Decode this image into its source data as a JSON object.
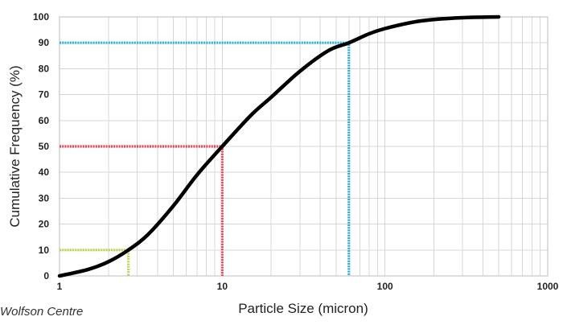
{
  "chart_data": {
    "type": "line",
    "title": "",
    "xlabel": "Particle Size (micron)",
    "ylabel": "Cumulative Frequency (%)",
    "x_scale": "log",
    "xlim": [
      1,
      1000
    ],
    "ylim": [
      0,
      100
    ],
    "x_ticks": [
      1,
      10,
      100,
      1000
    ],
    "x_tick_labels": [
      "1",
      "10",
      "100",
      "1000"
    ],
    "y_ticks": [
      0,
      10,
      20,
      30,
      40,
      50,
      60,
      70,
      80,
      90,
      100
    ],
    "y_tick_labels": [
      "0",
      "10",
      "20",
      "30",
      "40",
      "50",
      "60",
      "70",
      "80",
      "90",
      "100"
    ],
    "grid": true,
    "series": [
      {
        "color": "#000000",
        "x": [
          1,
          1.5,
          2,
          2.65,
          3.5,
          5,
          7,
          10,
          15,
          20,
          30,
          45,
          60,
          80,
          100,
          150,
          200,
          300,
          500
        ],
        "y": [
          0,
          2.5,
          5.5,
          10,
          16,
          27,
          39,
          50,
          62,
          69,
          79,
          87,
          90,
          93.5,
          95.5,
          98,
          99,
          99.7,
          100
        ]
      }
    ],
    "reference_lines": [
      {
        "color": "#b7d44a",
        "x": 2.65,
        "y": 10
      },
      {
        "color": "#ee3b4f",
        "x": 10,
        "y": 50
      },
      {
        "color": "#23aee4",
        "x": 60,
        "y": 90
      }
    ]
  },
  "credit": "Wolfson Centre"
}
